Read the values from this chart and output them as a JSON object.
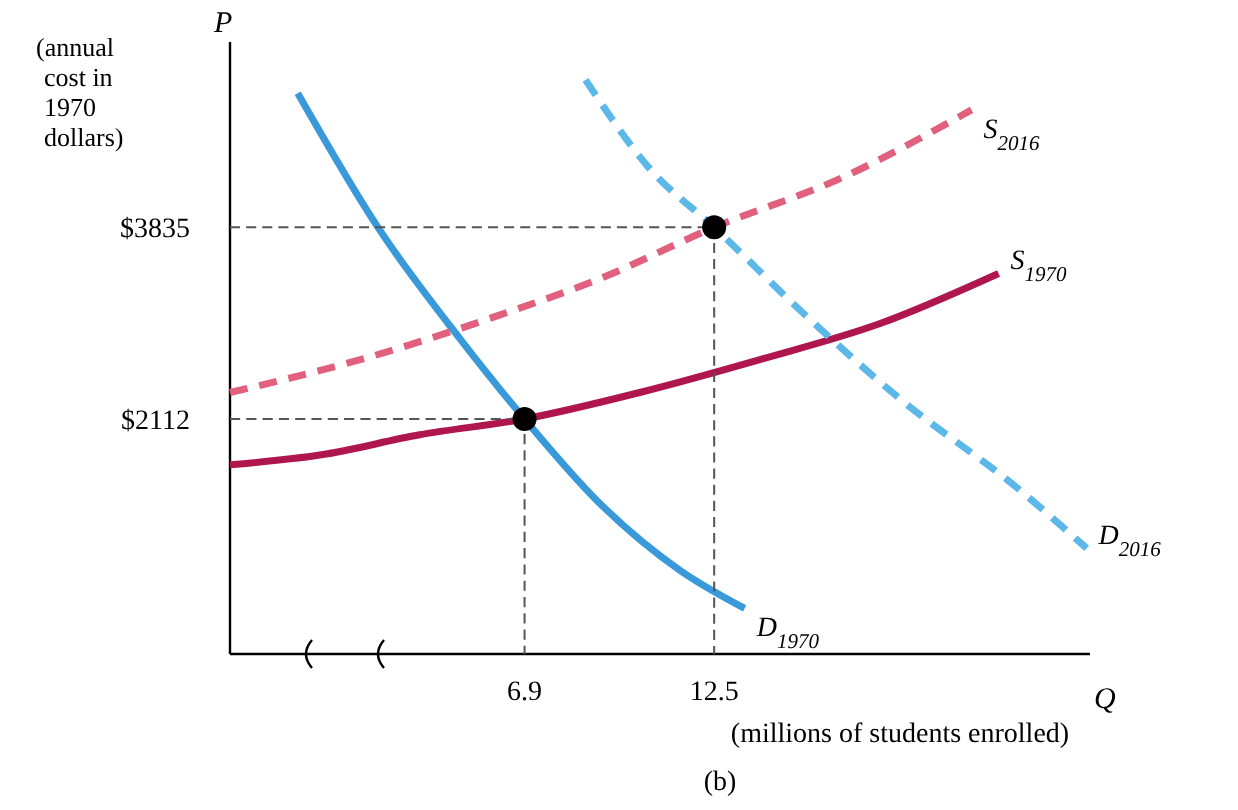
{
  "chart_data": {
    "type": "line",
    "ylabel": "P",
    "xlabel": "Q",
    "annotations": [
      "(annual cost in 1970 dollars)",
      "(millions of students enrolled)",
      "(b)"
    ],
    "xlim": [
      -1.8,
      23.6
    ],
    "ylim": [
      0,
      5500
    ],
    "xticks": [
      6.9,
      12.5
    ],
    "yticks": [
      {
        "value": 2112,
        "label": "$2112"
      },
      {
        "value": 3835,
        "label": "$3835"
      }
    ],
    "grid": false,
    "legend": false,
    "tick_labels": true,
    "series": [
      {
        "name": "D$_{1970}$",
        "color": "#3a9ad9",
        "line_style": "solid",
        "x": [
          0.2,
          2.6,
          5,
          6.9,
          9.1,
          11.5,
          13.4
        ],
        "values": [
          5040,
          3820,
          2830,
          2112,
          1360,
          750,
          410
        ]
      },
      {
        "name": "S$_{1970}$",
        "color": "#b0164e",
        "line_style": "solid",
        "x": [
          -1.8,
          0.9,
          3.8,
          6.9,
          10.3,
          13.9,
          17.4,
          20.9
        ],
        "values": [
          1700,
          1790,
          1970,
          2112,
          2350,
          2650,
          2970,
          3420
        ]
      },
      {
        "name": "S$_{2016}$",
        "color": "#e0607e",
        "line_style": "dashed",
        "x": [
          -1.8,
          2.1,
          6.2,
          9.1,
          12.5,
          16.2,
          20.1
        ],
        "values": [
          2350,
          2650,
          3050,
          3370,
          3835,
          4270,
          4890
        ]
      },
      {
        "name": "D$_{2016}$",
        "color": "#5bb8e8",
        "line_style": "dashed",
        "x": [
          8.7,
          10.6,
          12.5,
          15,
          18,
          21.5,
          23.5
        ],
        "values": [
          5160,
          4360,
          3835,
          3100,
          2290,
          1480,
          950
        ]
      },
      {
        "color": "#555555",
        "line_style": "dashed",
        "x": [
          -1.8,
          6.9,
          6.9
        ],
        "values": [
          2112,
          2112,
          0
        ]
      },
      {
        "color": "#555555",
        "line_style": "dashed",
        "x": [
          -1.8,
          12.5,
          12.5
        ],
        "values": [
          3835,
          3835,
          0
        ]
      },
      {
        "type": "scatter",
        "color": "#000000",
        "marker": "circle",
        "x": [
          6.9,
          12.5
        ],
        "values": [
          2112,
          3835
        ]
      }
    ]
  }
}
